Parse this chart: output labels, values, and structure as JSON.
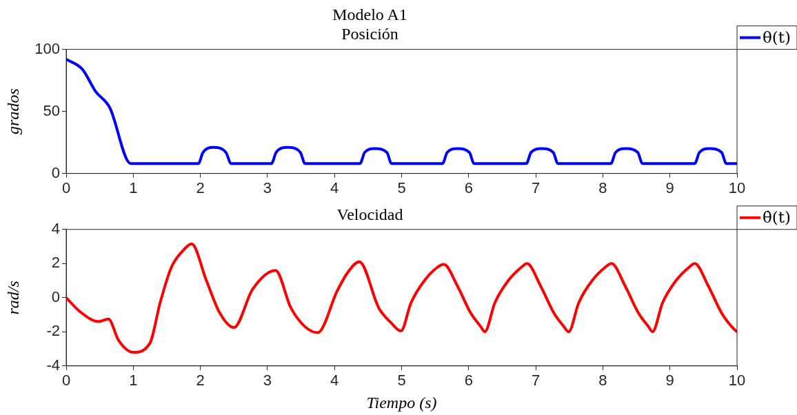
{
  "chart_data": [
    {
      "type": "line",
      "title": "Modelo A1",
      "subtitle": "Posición",
      "ylabel": "grados",
      "xlim": [
        0,
        10
      ],
      "xticks": [
        0,
        1,
        2,
        3,
        4,
        5,
        6,
        7,
        8,
        9,
        10
      ],
      "ylim": [
        0,
        100
      ],
      "yticks": [
        0,
        50,
        100
      ],
      "grid": false,
      "legend": "top right",
      "marker": "none",
      "line_style": "solid",
      "series": [
        {
          "name": "θ(t)",
          "color": "#0000ff",
          "x": [
            0,
            0.24,
            0.44,
            0.65,
            0.96,
            1.97,
            2.04,
            2.19,
            2.38,
            2.46,
            3.06,
            3.13,
            3.3,
            3.49,
            3.56,
            4.38,
            4.45,
            4.6,
            4.78,
            4.85,
            5.61,
            5.68,
            5.83,
            6.01,
            6.08,
            6.86,
            6.93,
            7.09,
            7.26,
            7.33,
            8.12,
            8.19,
            8.34,
            8.52,
            8.59,
            9.37,
            9.44,
            9.59,
            9.77,
            9.84,
            10
          ],
          "values": [
            92,
            84,
            66,
            53,
            8,
            8,
            17,
            21,
            17,
            8,
            8,
            17,
            21,
            17,
            8,
            8,
            17,
            20,
            17,
            8,
            8,
            17,
            20,
            17,
            8,
            8,
            17,
            20,
            17,
            8,
            8,
            17,
            20,
            17,
            8,
            8,
            17,
            20,
            17,
            8,
            8
          ]
        }
      ]
    },
    {
      "type": "line",
      "title": "Velocidad",
      "xlabel": "Tiempo (s)",
      "ylabel": "rad/s",
      "xlim": [
        0,
        10
      ],
      "xticks": [
        0,
        1,
        2,
        3,
        4,
        5,
        6,
        7,
        8,
        9,
        10
      ],
      "ylim": [
        -4,
        4
      ],
      "yticks": [
        -4,
        -2,
        0,
        2,
        4
      ],
      "grid": false,
      "legend": "top right",
      "marker": "none",
      "line_style": "solid",
      "series": [
        {
          "name": "θ̇(t)",
          "color": "#ff0000",
          "x": [
            0,
            0.2,
            0.48,
            0.63,
            0.78,
            1.0,
            1.25,
            1.4,
            1.57,
            1.75,
            1.87,
            2.09,
            2.29,
            2.5,
            2.78,
            3.12,
            3.35,
            3.56,
            3.75,
            4.04,
            4.2,
            4.37,
            4.66,
            4.85,
            4.99,
            5.14,
            5.34,
            5.54,
            5.63,
            5.83,
            6.03,
            6.18,
            6.24,
            6.39,
            6.59,
            6.79,
            6.87,
            7.07,
            7.27,
            7.42,
            7.49,
            7.64,
            7.84,
            8.04,
            8.13,
            8.33,
            8.53,
            8.68,
            8.74,
            8.89,
            9.09,
            9.29,
            9.37,
            9.57,
            9.77,
            9.92,
            10
          ],
          "values": [
            0,
            -0.8,
            -1.4,
            -1.25,
            -2.5,
            -3.2,
            -2.65,
            -0.3,
            1.8,
            2.8,
            3.15,
            1.0,
            -0.9,
            -1.75,
            0.5,
            1.6,
            -0.6,
            -1.7,
            -2.05,
            0.4,
            1.5,
            2.1,
            -0.6,
            -1.5,
            -1.95,
            -0.3,
            1.0,
            1.8,
            1.95,
            0.7,
            -0.9,
            -1.7,
            -2.0,
            -0.3,
            1.0,
            1.8,
            2.0,
            0.7,
            -0.9,
            -1.7,
            -2.0,
            -0.3,
            1.0,
            1.8,
            2.0,
            0.7,
            -0.9,
            -1.7,
            -2.0,
            -0.3,
            1.0,
            1.8,
            2.0,
            0.7,
            -0.9,
            -1.7,
            -2.0
          ]
        }
      ]
    }
  ]
}
